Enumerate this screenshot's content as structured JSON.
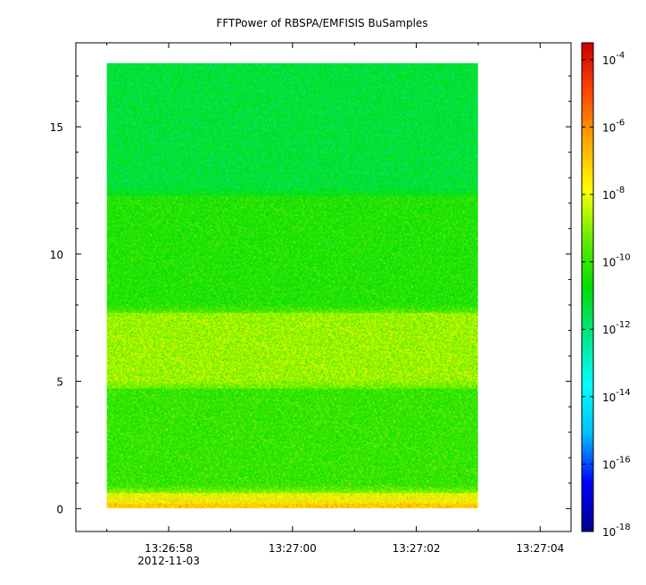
{
  "chart_data": {
    "type": "heatmap",
    "title": "FFTPower of RBSPA/EMFISIS  BuSamples",
    "xlabel": "",
    "ylabel": "",
    "x_tick_labels": [
      "13:26:58",
      "13:27:00",
      "13:27:02",
      "13:27:04"
    ],
    "x_tick_seconds": [
      58,
      60,
      62,
      64
    ],
    "x_date_label": "2012-11-03",
    "xlim_seconds": [
      56.5,
      64.5
    ],
    "data_xrange_seconds": [
      57.0,
      63.0
    ],
    "yticks": [
      0,
      5,
      10,
      15
    ],
    "y_tick_labels": [
      "0",
      "5",
      "10",
      "15"
    ],
    "ylim": [
      -0.9,
      18.3
    ],
    "data_yrange": [
      0,
      17.5
    ],
    "colorbar": {
      "scale": "log",
      "range": [
        -18,
        -3.5
      ],
      "tick_exponents": [
        -4,
        -6,
        -8,
        -10,
        -12,
        -14,
        -16,
        -18
      ],
      "tick_base": "10",
      "colormap": [
        "#00008b",
        "#0000ff",
        "#00bfff",
        "#00ffff",
        "#00e68a",
        "#00dd00",
        "#66ee00",
        "#ffff00",
        "#ffa500",
        "#ff4500",
        "#cc0000"
      ]
    },
    "bands": [
      {
        "y_from": 0.0,
        "y_to": 0.2,
        "log_power": -7.0
      },
      {
        "y_from": 0.2,
        "y_to": 0.6,
        "log_power": -8.0
      },
      {
        "y_from": 0.6,
        "y_to": 4.7,
        "log_power": -10.0
      },
      {
        "y_from": 4.7,
        "y_to": 7.7,
        "log_power": -8.8
      },
      {
        "y_from": 7.7,
        "y_to": 12.3,
        "log_power": -10.3
      },
      {
        "y_from": 12.3,
        "y_to": 17.5,
        "log_power": -11.3
      }
    ],
    "grid": false
  }
}
